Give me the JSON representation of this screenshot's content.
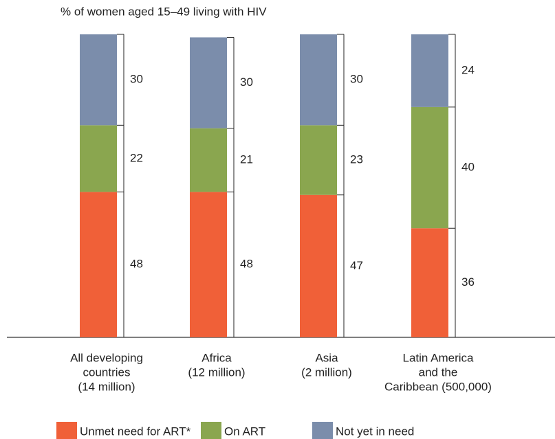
{
  "chart_data": {
    "type": "stacked-bar",
    "title": "% of women aged 15–49 living with HIV",
    "categories": [
      [
        "All developing",
        "countries",
        "(14 million)"
      ],
      [
        "Africa",
        "(12 million)"
      ],
      [
        "Asia",
        "(2 million)"
      ],
      [
        "Latin America",
        "and the",
        "Caribbean (500,000)"
      ]
    ],
    "series": [
      {
        "name": "Unmet need for ART*",
        "color": "#f06038",
        "values": [
          48,
          48,
          47,
          36
        ]
      },
      {
        "name": "On ART",
        "color": "#8aa64f",
        "values": [
          22,
          21,
          23,
          40
        ]
      },
      {
        "name": "Not yet in need",
        "color": "#7b8dab",
        "values": [
          30,
          30,
          30,
          24
        ]
      }
    ],
    "ylim": [
      0,
      100
    ]
  }
}
